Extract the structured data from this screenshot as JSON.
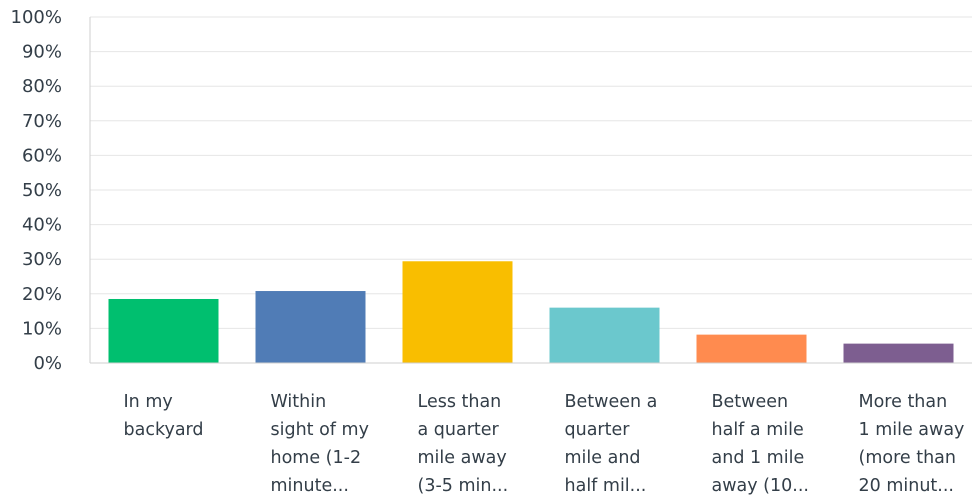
{
  "chart_data": {
    "type": "bar",
    "categories": [
      [
        "In my",
        "backyard"
      ],
      [
        "Within",
        "sight of my",
        "home (1-2",
        "minute..."
      ],
      [
        "Less than",
        "a quarter",
        "mile away",
        "(3-5 min..."
      ],
      [
        "Between a",
        "quarter",
        "mile and",
        "half mil..."
      ],
      [
        "Between",
        "half a mile",
        "and 1 mile",
        "away (10..."
      ],
      [
        "More than",
        "1 mile away",
        "(more than",
        "20 minut..."
      ]
    ],
    "values": [
      18.5,
      20.8,
      29.4,
      16.0,
      8.2,
      5.6
    ],
    "colors": [
      "#00bf6f",
      "#507cb6",
      "#f9be00",
      "#6bc8cd",
      "#ff8b4f",
      "#7d5e90"
    ],
    "ylim": [
      0,
      100
    ],
    "yticks": [
      "0%",
      "10%",
      "20%",
      "30%",
      "40%",
      "50%",
      "60%",
      "70%",
      "80%",
      "90%",
      "100%"
    ],
    "grid": true,
    "title": "",
    "xlabel": "",
    "ylabel": ""
  }
}
